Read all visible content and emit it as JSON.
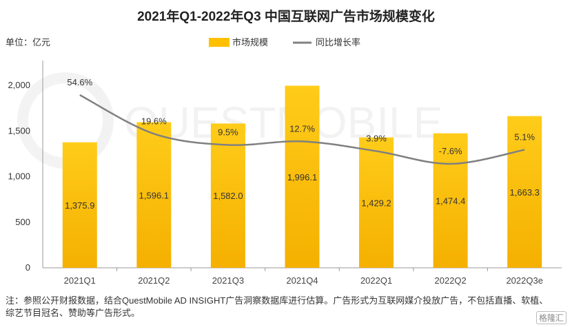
{
  "chart_data": {
    "type": "bar",
    "title": "2021年Q1-2022年Q3 中国互联网广告市场规模变化",
    "unit_label": "单位：亿元",
    "categories": [
      "2021Q1",
      "2021Q2",
      "2021Q3",
      "2021Q4",
      "2022Q1",
      "2022Q2",
      "2022Q3e"
    ],
    "series": [
      {
        "name": "市场规模",
        "kind": "bar",
        "color": "#FFC000",
        "values": [
          1375.9,
          1596.1,
          1582.0,
          1996.1,
          1429.2,
          1474.4,
          1663.3
        ],
        "labels": [
          "1,375.9",
          "1,596.1",
          "1,582.0",
          "1,996.1",
          "1,429.2",
          "1,474.4",
          "1,663.3"
        ]
      },
      {
        "name": "同比增长率",
        "kind": "line",
        "color": "#808080",
        "values": [
          54.6,
          19.6,
          9.5,
          12.7,
          3.9,
          -7.6,
          5.1
        ],
        "labels": [
          "54.6%",
          "19.6%",
          "9.5%",
          "12.7%",
          "3.9%",
          "-7.6%",
          "5.1%"
        ]
      }
    ],
    "y_ticks": [
      "0",
      "500",
      "1,000",
      "1,500",
      "2,000"
    ],
    "ylim": [
      0,
      2500
    ],
    "legend_position": "top-right",
    "grid": false
  },
  "footnote": "注：参照公开财报数据，结合QuestMobile AD INSIGHT广告洞察数据库进行估算。广告形式为互联网媒介投放广告，不包括直播、软植、综艺节目冠名、赞助等广告形式。",
  "watermark": "QUESTMOBILE",
  "brand_mark": "格隆汇"
}
